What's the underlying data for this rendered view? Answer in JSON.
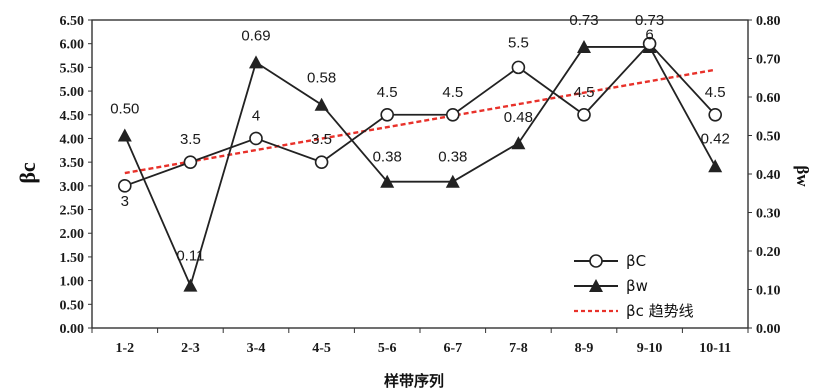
{
  "chart_data": {
    "type": "line",
    "categories": [
      "1-2",
      "2-3",
      "3-4",
      "4-5",
      "5-6",
      "6-7",
      "7-8",
      "8-9",
      "9-10",
      "10-11"
    ],
    "series": [
      {
        "name": "βC",
        "axis": "left",
        "marker": "open-circle",
        "values": [
          3,
          3.5,
          4,
          3.5,
          4.5,
          4.5,
          5.5,
          4.5,
          6,
          4.5
        ],
        "labels": [
          "3",
          "3.5",
          "4",
          "3.5",
          "4.5",
          "4.5",
          "5.5",
          "4.5",
          "6",
          "4.5"
        ]
      },
      {
        "name": "βw",
        "axis": "right",
        "marker": "filled-triangle",
        "values": [
          0.5,
          0.11,
          0.69,
          0.58,
          0.38,
          0.38,
          0.48,
          0.73,
          0.73,
          0.42
        ],
        "labels": [
          "0.50",
          "0.11",
          "0.69",
          "0.58",
          "0.38",
          "0.38",
          "0.48",
          "0.73",
          "0.73",
          "0.42"
        ]
      }
    ],
    "trendline": {
      "name": "βc 趋势线",
      "color": "#e8312a",
      "style": "dashed",
      "axis": "left",
      "start": 3.27,
      "end": 5.45
    },
    "y_left": {
      "label": "βc",
      "ylim": [
        0,
        6.5
      ],
      "ticks": [
        "0.00",
        "0.50",
        "1.00",
        "1.50",
        "2.00",
        "2.50",
        "3.00",
        "3.50",
        "4.00",
        "4.50",
        "5.00",
        "5.50",
        "6.00",
        "6.50"
      ]
    },
    "y_right": {
      "label": "βw",
      "ylim": [
        0,
        0.8
      ],
      "ticks": [
        "0.00",
        "0.10",
        "0.20",
        "0.30",
        "0.40",
        "0.50",
        "0.60",
        "0.70",
        "0.80"
      ]
    },
    "xlabel": "样带序列",
    "title": "",
    "grid": false,
    "legend_position": "bottom-right",
    "line_color": "#222222"
  }
}
